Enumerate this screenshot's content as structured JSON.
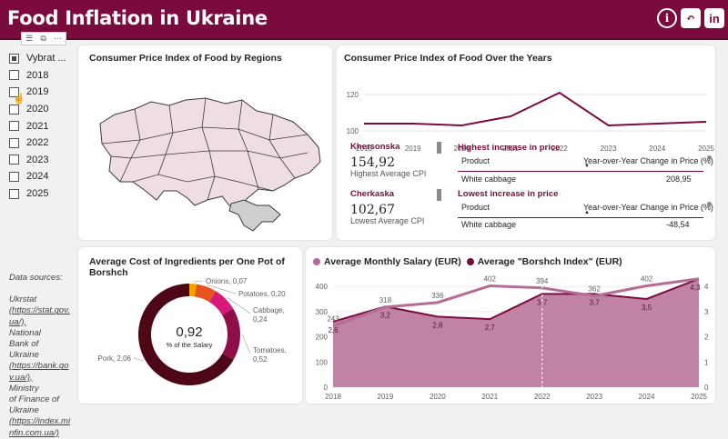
{
  "header": {
    "title": "Food Inflation in Ukraine",
    "icons": [
      "info-icon",
      "back-icon",
      "linkedin-icon"
    ],
    "info_glyph": "i",
    "linkedin_glyph": "in"
  },
  "slicer": {
    "items": [
      {
        "label": "Vybrat ...",
        "checked": true
      },
      {
        "label": "2018",
        "checked": false
      },
      {
        "label": "2019",
        "checked": false
      },
      {
        "label": "2020",
        "checked": false
      },
      {
        "label": "2021",
        "checked": false
      },
      {
        "label": "2022",
        "checked": false
      },
      {
        "label": "2023",
        "checked": false
      },
      {
        "label": "2024",
        "checked": false
      },
      {
        "label": "2025",
        "checked": false
      }
    ]
  },
  "sources": {
    "heading": "Data sources:",
    "lines": [
      "Ukrstat",
      "(https://stat.gov.",
      "ua/),",
      "National",
      "Bank of Ukraine",
      "(https://bank.go",
      "v.ua/),",
      "Ministry",
      "of Finance of",
      "Ukraine",
      "(https://index.mi",
      "nfin.com.ua/)"
    ]
  },
  "map_panel": {
    "title": "Consumer Price Index of Food by Regions"
  },
  "cpi_years": {
    "title": "Consumer Price Index of Food Over the Years",
    "chart_data": {
      "type": "line",
      "x": [
        "2018",
        "2019",
        "2020",
        "2021",
        "2022",
        "2023",
        "2024",
        "2025"
      ],
      "series": [
        {
          "values": [
            104,
            104,
            103,
            108,
            121,
            103,
            104,
            105
          ]
        }
      ],
      "yticks": [
        100,
        120
      ],
      "ylim": [
        98,
        128
      ],
      "color": "#7a0b3c"
    }
  },
  "kpis": [
    {
      "name": "Khersonska",
      "value": "154,92",
      "sub": "Highest Average CPI"
    },
    {
      "name": "Cherkaska",
      "value": "102,67",
      "sub": "Lowest Average CPI"
    }
  ],
  "highest_table": {
    "title": "Highest increase in price",
    "col1": "Product",
    "col2": "Year-over-Year Change in Price (%)",
    "product": "White cabbage",
    "value": "208,95"
  },
  "lowest_table": {
    "title": "Lowest increase in price",
    "col1": "Product",
    "col2": "Year-over-Year Change in Price (%)",
    "product": "White cabbage",
    "value": "-48,54"
  },
  "borshch_panel": {
    "title": "Average Cost of Ingredients per One Pot of Borshch",
    "center_value": "0,92",
    "center_label": "% of the Salary",
    "chart_data": {
      "type": "pie",
      "slices": [
        {
          "label": "Onions",
          "value": 0.07,
          "text": "Onions, 0,07",
          "color": "#f5a300"
        },
        {
          "label": "Potatoes",
          "value": 0.2,
          "text": "Potatoes, 0,20",
          "color": "#e8541e"
        },
        {
          "label": "Cabbage",
          "value": 0.24,
          "text": "Cabbage, 0,24",
          "color": "#d61a7b"
        },
        {
          "label": "Tomatoes",
          "value": 0.52,
          "text": "Tomatoes, 0,52",
          "color": "#8e0e49"
        },
        {
          "label": "Pork",
          "value": 2.06,
          "text": "Pork, 2,06",
          "color": "#4e0717"
        }
      ]
    }
  },
  "salary_chart": {
    "legend": [
      {
        "label": "Average Monthly Salary (EUR)",
        "color": "#b56d95"
      },
      {
        "label": "Average \"Borshch Index\" (EUR)",
        "color": "#7a0b3c"
      }
    ],
    "chart_data": {
      "type": "area",
      "x": [
        "2018",
        "2019",
        "2020",
        "2021",
        "2022",
        "2023",
        "2024",
        "2025"
      ],
      "series": [
        {
          "name": "Average Monthly Salary (EUR)",
          "values": [
            243,
            318,
            336,
            402,
            394,
            362,
            402,
            430
          ],
          "labels": [
            "243",
            "318",
            "336",
            "402",
            "394",
            "362",
            "402",
            ""
          ]
        },
        {
          "name": "Average \"Borshch Index\" (EUR)",
          "values": [
            2.6,
            3.2,
            2.8,
            2.7,
            3.7,
            3.7,
            3.5,
            4.3
          ],
          "labels": [
            "2,6",
            "3,2",
            "2,8",
            "2,7",
            "3,7",
            "3,7",
            "3,5",
            "4,3"
          ]
        }
      ],
      "yticks_left": [
        0,
        100,
        200,
        300,
        400
      ],
      "yticks_right": [
        0,
        1,
        2,
        3,
        4
      ],
      "ylim_left": [
        0,
        440
      ],
      "ylim_right": [
        0,
        4.4
      ],
      "fill_color": "#b56d95",
      "line_color": "#7a0b3c"
    }
  }
}
